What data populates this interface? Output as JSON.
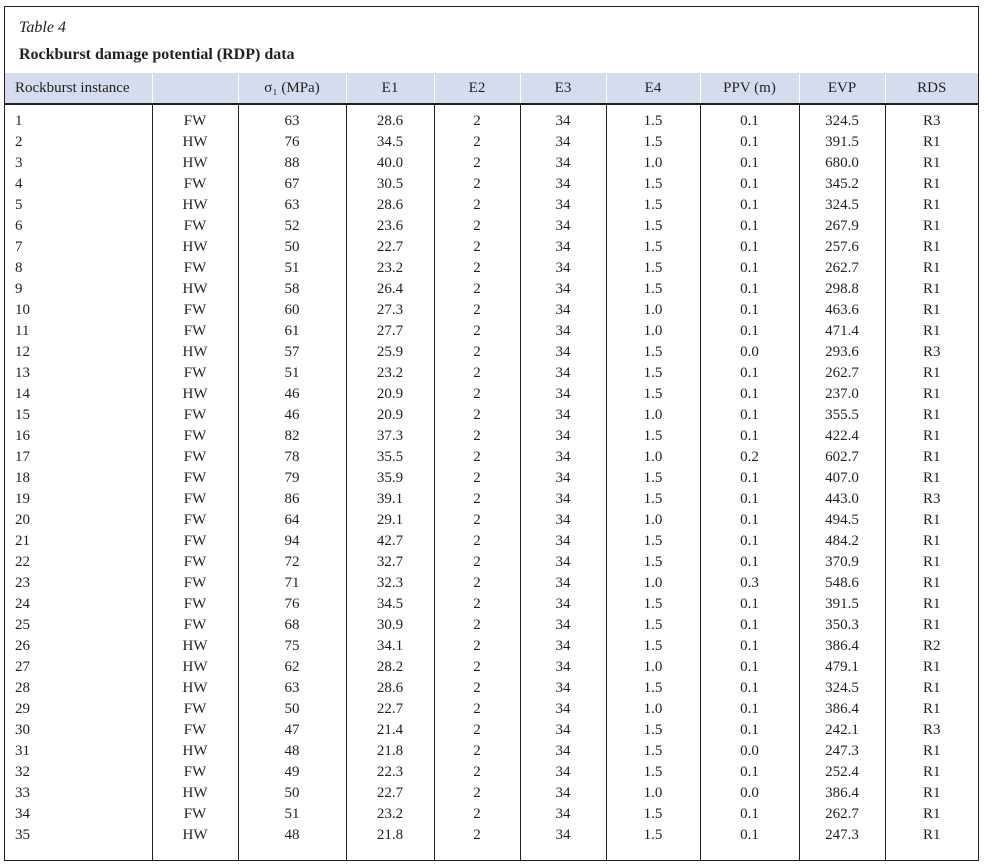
{
  "caption": {
    "label": "Table 4",
    "title": "Rockburst damage potential (RDP) data"
  },
  "colors": {
    "header_bg": "#d5dcee"
  },
  "columns": [
    "Rockburst instance",
    "",
    "σ₁ (MPa)",
    "E1",
    "E2",
    "E3",
    "E4",
    "PPV (m)",
    "EVP",
    "RDS"
  ],
  "rows": [
    [
      "1",
      "FW",
      "63",
      "28.6",
      "2",
      "34",
      "1.5",
      "0.1",
      "324.5",
      "R3"
    ],
    [
      "2",
      "HW",
      "76",
      "34.5",
      "2",
      "34",
      "1.5",
      "0.1",
      "391.5",
      "R1"
    ],
    [
      "3",
      "HW",
      "88",
      "40.0",
      "2",
      "34",
      "1.0",
      "0.1",
      "680.0",
      "R1"
    ],
    [
      "4",
      "FW",
      "67",
      "30.5",
      "2",
      "34",
      "1.5",
      "0.1",
      "345.2",
      "R1"
    ],
    [
      "5",
      "HW",
      "63",
      "28.6",
      "2",
      "34",
      "1.5",
      "0.1",
      "324.5",
      "R1"
    ],
    [
      "6",
      "FW",
      "52",
      "23.6",
      "2",
      "34",
      "1.5",
      "0.1",
      "267.9",
      "R1"
    ],
    [
      "7",
      "HW",
      "50",
      "22.7",
      "2",
      "34",
      "1.5",
      "0.1",
      "257.6",
      "R1"
    ],
    [
      "8",
      "FW",
      "51",
      "23.2",
      "2",
      "34",
      "1.5",
      "0.1",
      "262.7",
      "R1"
    ],
    [
      "9",
      "HW",
      "58",
      "26.4",
      "2",
      "34",
      "1.5",
      "0.1",
      "298.8",
      "R1"
    ],
    [
      "10",
      "FW",
      "60",
      "27.3",
      "2",
      "34",
      "1.0",
      "0.1",
      "463.6",
      "R1"
    ],
    [
      "11",
      "FW",
      "61",
      "27.7",
      "2",
      "34",
      "1.0",
      "0.1",
      "471.4",
      "R1"
    ],
    [
      "12",
      "HW",
      "57",
      "25.9",
      "2",
      "34",
      "1.5",
      "0.0",
      "293.6",
      "R3"
    ],
    [
      "13",
      "FW",
      "51",
      "23.2",
      "2",
      "34",
      "1.5",
      "0.1",
      "262.7",
      "R1"
    ],
    [
      "14",
      "HW",
      "46",
      "20.9",
      "2",
      "34",
      "1.5",
      "0.1",
      "237.0",
      "R1"
    ],
    [
      "15",
      "FW",
      "46",
      "20.9",
      "2",
      "34",
      "1.0",
      "0.1",
      "355.5",
      "R1"
    ],
    [
      "16",
      "FW",
      "82",
      "37.3",
      "2",
      "34",
      "1.5",
      "0.1",
      "422.4",
      "R1"
    ],
    [
      "17",
      "FW",
      "78",
      "35.5",
      "2",
      "34",
      "1.0",
      "0.2",
      "602.7",
      "R1"
    ],
    [
      "18",
      "FW",
      "79",
      "35.9",
      "2",
      "34",
      "1.5",
      "0.1",
      "407.0",
      "R1"
    ],
    [
      "19",
      "FW",
      "86",
      "39.1",
      "2",
      "34",
      "1.5",
      "0.1",
      "443.0",
      "R3"
    ],
    [
      "20",
      "FW",
      "64",
      "29.1",
      "2",
      "34",
      "1.0",
      "0.1",
      "494.5",
      "R1"
    ],
    [
      "21",
      "FW",
      "94",
      "42.7",
      "2",
      "34",
      "1.5",
      "0.1",
      "484.2",
      "R1"
    ],
    [
      "22",
      "FW",
      "72",
      "32.7",
      "2",
      "34",
      "1.5",
      "0.1",
      "370.9",
      "R1"
    ],
    [
      "23",
      "FW",
      "71",
      "32.3",
      "2",
      "34",
      "1.0",
      "0.3",
      "548.6",
      "R1"
    ],
    [
      "24",
      "FW",
      "76",
      "34.5",
      "2",
      "34",
      "1.5",
      "0.1",
      "391.5",
      "R1"
    ],
    [
      "25",
      "FW",
      "68",
      "30.9",
      "2",
      "34",
      "1.5",
      "0.1",
      "350.3",
      "R1"
    ],
    [
      "26",
      "HW",
      "75",
      "34.1",
      "2",
      "34",
      "1.5",
      "0.1",
      "386.4",
      "R2"
    ],
    [
      "27",
      "HW",
      "62",
      "28.2",
      "2",
      "34",
      "1.0",
      "0.1",
      "479.1",
      "R1"
    ],
    [
      "28",
      "HW",
      "63",
      "28.6",
      "2",
      "34",
      "1.5",
      "0.1",
      "324.5",
      "R1"
    ],
    [
      "29",
      "FW",
      "50",
      "22.7",
      "2",
      "34",
      "1.0",
      "0.1",
      "386.4",
      "R1"
    ],
    [
      "30",
      "FW",
      "47",
      "21.4",
      "2",
      "34",
      "1.5",
      "0.1",
      "242.1",
      "R3"
    ],
    [
      "31",
      "HW",
      "48",
      "21.8",
      "2",
      "34",
      "1.5",
      "0.0",
      "247.3",
      "R1"
    ],
    [
      "32",
      "FW",
      "49",
      "22.3",
      "2",
      "34",
      "1.5",
      "0.1",
      "252.4",
      "R1"
    ],
    [
      "33",
      "HW",
      "50",
      "22.7",
      "2",
      "34",
      "1.0",
      "0.0",
      "386.4",
      "R1"
    ],
    [
      "34",
      "FW",
      "51",
      "23.2",
      "2",
      "34",
      "1.5",
      "0.1",
      "262.7",
      "R1"
    ],
    [
      "35",
      "HW",
      "48",
      "21.8",
      "2",
      "34",
      "1.5",
      "0.1",
      "247.3",
      "R1"
    ]
  ]
}
